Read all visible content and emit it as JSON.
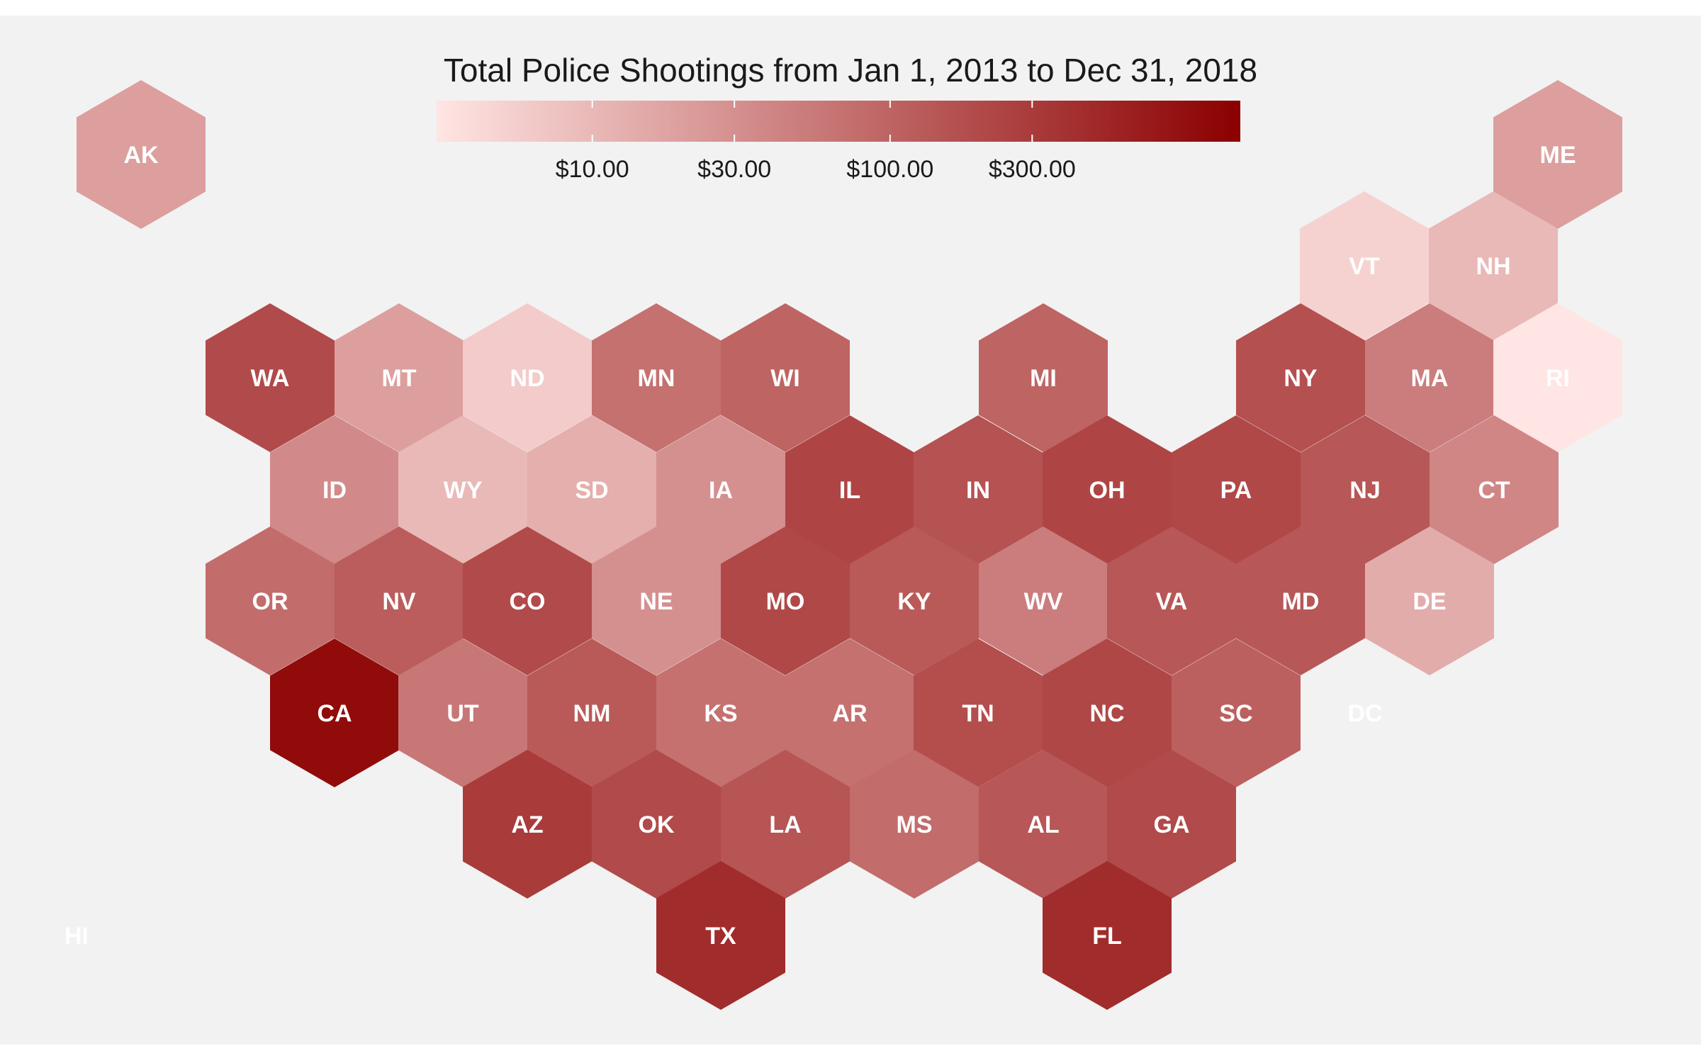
{
  "title": "Total Police Shootings from Jan 1, 2013 to Dec 31, 2018",
  "legend": {
    "low_color": "#ffe5e3",
    "high_color": "#8b0000",
    "scale": "log",
    "range": [
      3,
      1500
    ],
    "ticks": [
      {
        "value": 10,
        "label": "$10.00"
      },
      {
        "value": 30,
        "label": "$30.00"
      },
      {
        "value": 100,
        "label": "$100.00"
      },
      {
        "value": 300,
        "label": "$300.00"
      }
    ]
  },
  "chart_data": {
    "type": "heatmap",
    "title": "Total Police Shootings from Jan 1, 2013 to Dec 31, 2018",
    "note": "hex-tile map of US states; fill encodes value on a log color scale",
    "states": [
      {
        "abbr": "AK",
        "value": 20
      },
      {
        "abbr": "ME",
        "value": 20
      },
      {
        "abbr": "VT",
        "value": 5
      },
      {
        "abbr": "NH",
        "value": 10
      },
      {
        "abbr": "WA",
        "value": 200
      },
      {
        "abbr": "MT",
        "value": 20
      },
      {
        "abbr": "ND",
        "value": 6
      },
      {
        "abbr": "MN",
        "value": 70
      },
      {
        "abbr": "WI",
        "value": 100
      },
      {
        "abbr": "MI",
        "value": 100
      },
      {
        "abbr": "NY",
        "value": 170
      },
      {
        "abbr": "MA",
        "value": 50
      },
      {
        "abbr": "RI",
        "value": 3
      },
      {
        "abbr": "ID",
        "value": 35
      },
      {
        "abbr": "WY",
        "value": 10
      },
      {
        "abbr": "SD",
        "value": 13
      },
      {
        "abbr": "IA",
        "value": 30
      },
      {
        "abbr": "IL",
        "value": 230
      },
      {
        "abbr": "IN",
        "value": 160
      },
      {
        "abbr": "OH",
        "value": 230
      },
      {
        "abbr": "PA",
        "value": 210
      },
      {
        "abbr": "NJ",
        "value": 140
      },
      {
        "abbr": "CT",
        "value": 40
      },
      {
        "abbr": "OR",
        "value": 80
      },
      {
        "abbr": "NV",
        "value": 120
      },
      {
        "abbr": "CO",
        "value": 200
      },
      {
        "abbr": "NE",
        "value": 30
      },
      {
        "abbr": "MO",
        "value": 210
      },
      {
        "abbr": "KY",
        "value": 130
      },
      {
        "abbr": "WV",
        "value": 50
      },
      {
        "abbr": "VA",
        "value": 140
      },
      {
        "abbr": "MD",
        "value": 140
      },
      {
        "abbr": "DE",
        "value": 14
      },
      {
        "abbr": "CA",
        "value": 1100
      },
      {
        "abbr": "UT",
        "value": 60
      },
      {
        "abbr": "NM",
        "value": 130
      },
      {
        "abbr": "KS",
        "value": 70
      },
      {
        "abbr": "AR",
        "value": 70
      },
      {
        "abbr": "TN",
        "value": 180
      },
      {
        "abbr": "NC",
        "value": 220
      },
      {
        "abbr": "SC",
        "value": 110
      },
      {
        "abbr": "DC",
        "value": null
      },
      {
        "abbr": "AZ",
        "value": 300
      },
      {
        "abbr": "OK",
        "value": 200
      },
      {
        "abbr": "LA",
        "value": 150
      },
      {
        "abbr": "MS",
        "value": 80
      },
      {
        "abbr": "AL",
        "value": 140
      },
      {
        "abbr": "GA",
        "value": 200
      },
      {
        "abbr": "TX",
        "value": 450
      },
      {
        "abbr": "FL",
        "value": 450
      },
      {
        "abbr": "HI",
        "value": null
      }
    ]
  }
}
